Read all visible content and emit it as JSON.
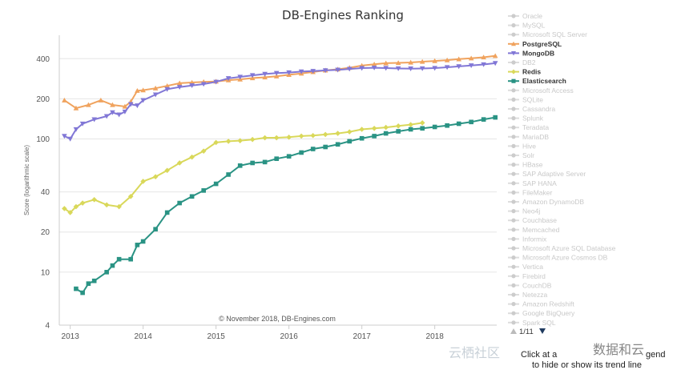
{
  "chart_data": {
    "type": "line",
    "title": "DB-Engines Ranking",
    "ylabel": "Score (logarithmic scale)",
    "xlabel": "",
    "yscale": "log",
    "ylim": [
      4,
      600
    ],
    "yticks": [
      4,
      10,
      20,
      40,
      100,
      200,
      400
    ],
    "xlim": [
      2012.85,
      2018.85
    ],
    "xticks": [
      2013,
      2014,
      2015,
      2016,
      2017,
      2018
    ],
    "credit": "© November 2018, DB-Engines.com",
    "legend_position": "right",
    "series": [
      {
        "name": "PostgreSQL",
        "color": "#f0a35e",
        "marker": "triangle-up",
        "x": [
          2012.92,
          2013.08,
          2013.25,
          2013.42,
          2013.58,
          2013.75,
          2013.83,
          2013.92,
          2014.0,
          2014.17,
          2014.33,
          2014.5,
          2014.67,
          2014.83,
          2015.0,
          2015.17,
          2015.33,
          2015.5,
          2015.67,
          2015.83,
          2016.0,
          2016.17,
          2016.33,
          2016.5,
          2016.67,
          2016.83,
          2017.0,
          2017.17,
          2017.33,
          2017.5,
          2017.67,
          2017.83,
          2018.0,
          2018.17,
          2018.33,
          2018.5,
          2018.67,
          2018.83
        ],
        "y": [
          195,
          170,
          180,
          195,
          180,
          175,
          190,
          230,
          232,
          240,
          250,
          262,
          265,
          268,
          270,
          276,
          280,
          286,
          290,
          295,
          303,
          310,
          318,
          327,
          333,
          342,
          355,
          363,
          370,
          372,
          375,
          380,
          385,
          390,
          397,
          403,
          410,
          420
        ]
      },
      {
        "name": "MongoDB",
        "color": "#8177d6",
        "marker": "triangle-down",
        "x": [
          2012.92,
          2013.0,
          2013.08,
          2013.17,
          2013.33,
          2013.5,
          2013.58,
          2013.67,
          2013.75,
          2013.83,
          2013.92,
          2014.0,
          2014.17,
          2014.33,
          2014.5,
          2014.67,
          2014.83,
          2015.0,
          2015.17,
          2015.33,
          2015.5,
          2015.67,
          2015.83,
          2016.0,
          2016.17,
          2016.33,
          2016.5,
          2016.67,
          2016.83,
          2017.0,
          2017.17,
          2017.33,
          2017.5,
          2017.67,
          2017.83,
          2018.0,
          2018.17,
          2018.33,
          2018.5,
          2018.67,
          2018.83
        ],
        "y": [
          105,
          100,
          118,
          130,
          140,
          148,
          158,
          152,
          160,
          182,
          178,
          195,
          215,
          236,
          245,
          252,
          258,
          268,
          285,
          292,
          300,
          307,
          312,
          315,
          320,
          323,
          327,
          330,
          335,
          340,
          342,
          340,
          338,
          337,
          338,
          340,
          345,
          350,
          356,
          362,
          370
        ]
      },
      {
        "name": "Redis",
        "color": "#d9d85a",
        "marker": "diamond",
        "x": [
          2012.92,
          2013.0,
          2013.08,
          2013.17,
          2013.33,
          2013.5,
          2013.67,
          2013.83,
          2014.0,
          2014.17,
          2014.33,
          2014.5,
          2014.67,
          2014.83,
          2015.0,
          2015.17,
          2015.33,
          2015.5,
          2015.67,
          2015.83,
          2016.0,
          2016.17,
          2016.33,
          2016.5,
          2016.67,
          2016.83,
          2017.0,
          2017.17,
          2017.33,
          2017.5,
          2017.67,
          2017.83
        ],
        "y": [
          30,
          28,
          31,
          33,
          35,
          32,
          31,
          37,
          48,
          52,
          58,
          66,
          73,
          81,
          94,
          96,
          97,
          99,
          102,
          102,
          103,
          105,
          106,
          108,
          110,
          113,
          118,
          120,
          122,
          125,
          128,
          132
        ]
      },
      {
        "name": "Elasticsearch",
        "color": "#2a9384",
        "marker": "square",
        "x": [
          2013.08,
          2013.17,
          2013.25,
          2013.33,
          2013.5,
          2013.58,
          2013.67,
          2013.83,
          2013.92,
          2014.0,
          2014.17,
          2014.33,
          2014.5,
          2014.67,
          2014.83,
          2015.0,
          2015.17,
          2015.33,
          2015.5,
          2015.67,
          2015.83,
          2016.0,
          2016.17,
          2016.33,
          2016.5,
          2016.67,
          2016.83,
          2017.0,
          2017.17,
          2017.33,
          2017.5,
          2017.67,
          2017.83,
          2018.0,
          2018.17,
          2018.33,
          2018.5,
          2018.67,
          2018.83
        ],
        "y": [
          7.5,
          7.0,
          8.2,
          8.6,
          10,
          11.2,
          12.5,
          12.5,
          16,
          17,
          21,
          28,
          33,
          37,
          41,
          46,
          54,
          63,
          66,
          67,
          71,
          74,
          79,
          84,
          87,
          91,
          96,
          101,
          105,
          110,
          114,
          118,
          120,
          123,
          126,
          130,
          134,
          140,
          145
        ]
      }
    ]
  },
  "legend": [
    {
      "label": "Oracle",
      "active": false
    },
    {
      "label": "MySQL",
      "active": false
    },
    {
      "label": "Microsoft SQL Server",
      "active": false
    },
    {
      "label": "PostgreSQL",
      "active": true,
      "marker": "triangle-up",
      "color": "#f0a35e"
    },
    {
      "label": "MongoDB",
      "active": true,
      "marker": "triangle-down",
      "color": "#8177d6"
    },
    {
      "label": "DB2",
      "active": false
    },
    {
      "label": "Redis",
      "active": true,
      "marker": "diamond",
      "color": "#d9d85a"
    },
    {
      "label": "Elasticsearch",
      "active": true,
      "marker": "square",
      "color": "#2a9384"
    },
    {
      "label": "Microsoft Access",
      "active": false
    },
    {
      "label": "SQLite",
      "active": false
    },
    {
      "label": "Cassandra",
      "active": false
    },
    {
      "label": "Splunk",
      "active": false
    },
    {
      "label": "Teradata",
      "active": false
    },
    {
      "label": "MariaDB",
      "active": false
    },
    {
      "label": "Hive",
      "active": false
    },
    {
      "label": "Solr",
      "active": false
    },
    {
      "label": "HBase",
      "active": false
    },
    {
      "label": "SAP Adaptive Server",
      "active": false
    },
    {
      "label": "SAP HANA",
      "active": false
    },
    {
      "label": "FileMaker",
      "active": false
    },
    {
      "label": "Amazon DynamoDB",
      "active": false
    },
    {
      "label": "Neo4j",
      "active": false
    },
    {
      "label": "Couchbase",
      "active": false
    },
    {
      "label": "Memcached",
      "active": false
    },
    {
      "label": "Informix",
      "active": false
    },
    {
      "label": "Microsoft Azure SQL Database",
      "active": false
    },
    {
      "label": "Microsoft Azure Cosmos DB",
      "active": false
    },
    {
      "label": "Vertica",
      "active": false
    },
    {
      "label": "Firebird",
      "active": false
    },
    {
      "label": "CouchDB",
      "active": false
    },
    {
      "label": "Netezza",
      "active": false
    },
    {
      "label": "Amazon Redshift",
      "active": false
    },
    {
      "label": "Google BigQuery",
      "active": false
    },
    {
      "label": "Spark SQL",
      "active": false
    }
  ],
  "pager": {
    "text": "1/11"
  },
  "hint": {
    "line1": "Click at a",
    "line2": "to hide or show its trend line",
    "line1_end": "gend"
  },
  "watermarks": {
    "left": "云栖社区",
    "right": "数据和云"
  }
}
